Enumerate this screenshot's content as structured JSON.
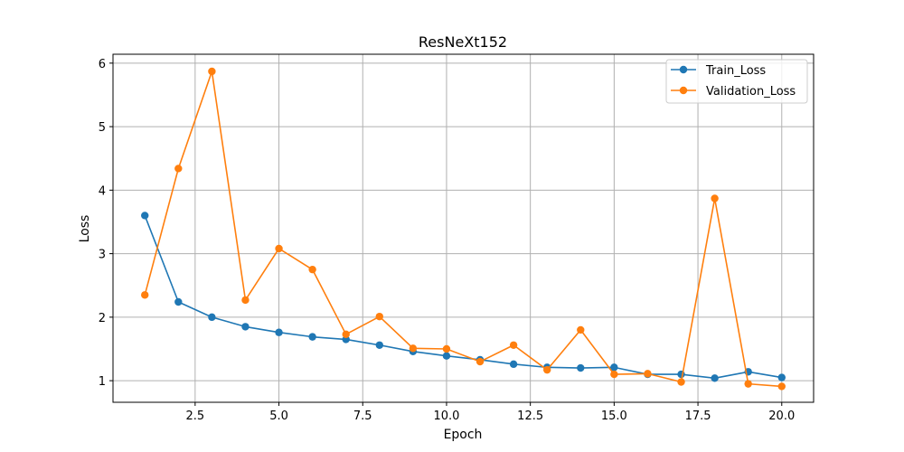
{
  "chart_data": {
    "type": "line",
    "title": "ResNeXt152",
    "xlabel": "Epoch",
    "ylabel": "Loss",
    "x": [
      1,
      2,
      3,
      4,
      5,
      6,
      7,
      8,
      9,
      10,
      11,
      12,
      13,
      14,
      15,
      16,
      17,
      18,
      19,
      20
    ],
    "xlim": [
      0.05,
      20.95
    ],
    "ylim": [
      0.66,
      6.14
    ],
    "xticks": [
      2.5,
      5.0,
      7.5,
      10.0,
      12.5,
      15.0,
      17.5,
      20.0
    ],
    "xtick_labels": [
      "2.5",
      "5.0",
      "7.5",
      "10.0",
      "12.5",
      "15.0",
      "17.5",
      "20.0"
    ],
    "yticks": [
      1,
      2,
      3,
      4,
      5,
      6
    ],
    "ytick_labels": [
      "1",
      "2",
      "3",
      "4",
      "5",
      "6"
    ],
    "grid": true,
    "legend_position": "top-right",
    "series": [
      {
        "name": "Train_Loss",
        "color": "#1f77b4",
        "marker": "circle",
        "values": [
          3.6,
          2.24,
          2.0,
          1.85,
          1.76,
          1.69,
          1.65,
          1.56,
          1.46,
          1.39,
          1.33,
          1.26,
          1.21,
          1.2,
          1.21,
          1.1,
          1.1,
          1.04,
          1.14,
          1.05
        ]
      },
      {
        "name": "Validation_Loss",
        "color": "#ff7f0e",
        "marker": "circle",
        "values": [
          2.35,
          4.34,
          5.87,
          2.27,
          3.08,
          2.75,
          1.73,
          2.01,
          1.51,
          1.5,
          1.3,
          1.56,
          1.17,
          1.8,
          1.1,
          1.11,
          0.98,
          3.87,
          0.95,
          0.91
        ]
      }
    ]
  }
}
